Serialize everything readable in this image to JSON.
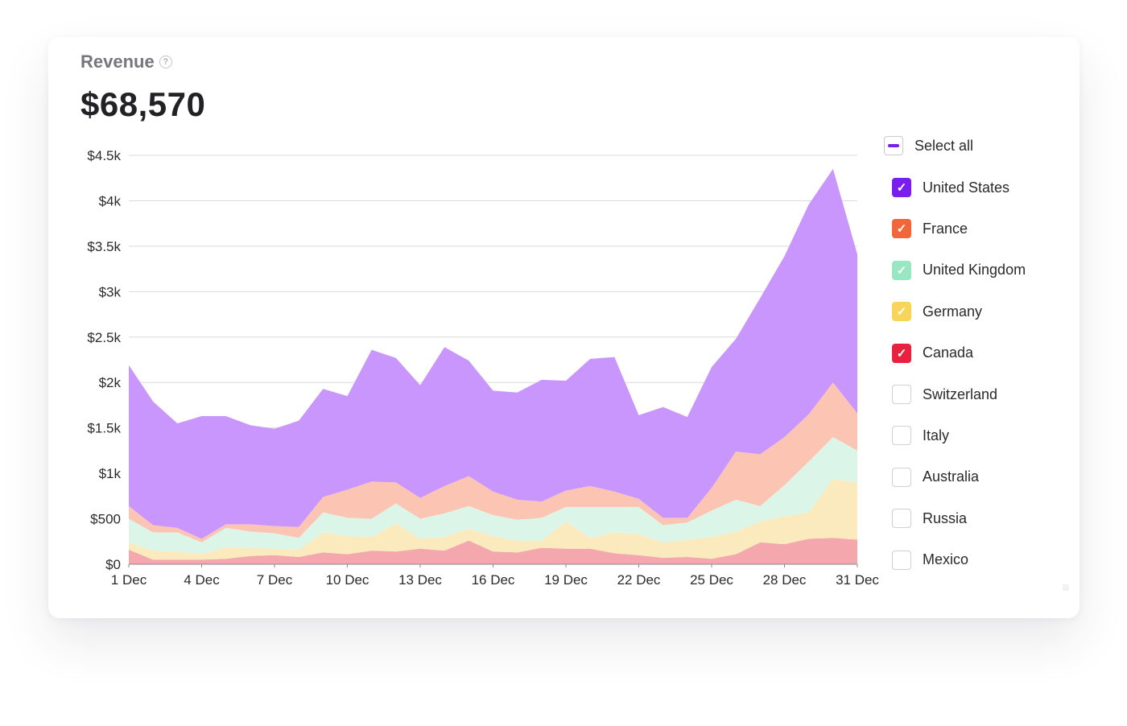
{
  "header": {
    "title": "Revenue",
    "total": "$68,570",
    "help_icon": "question-circle-icon"
  },
  "chart_data": {
    "type": "area",
    "stacked": true,
    "x": [
      "1 Dec",
      "2 Dec",
      "3 Dec",
      "4 Dec",
      "5 Dec",
      "6 Dec",
      "7 Dec",
      "8 Dec",
      "9 Dec",
      "10 Dec",
      "11 Dec",
      "12 Dec",
      "13 Dec",
      "14 Dec",
      "15 Dec",
      "16 Dec",
      "17 Dec",
      "18 Dec",
      "19 Dec",
      "20 Dec",
      "21 Dec",
      "22 Dec",
      "23 Dec",
      "24 Dec",
      "25 Dec",
      "26 Dec",
      "27 Dec",
      "28 Dec",
      "29 Dec",
      "30 Dec",
      "31 Dec"
    ],
    "x_tick_labels": [
      "1 Dec",
      "4 Dec",
      "7 Dec",
      "10 Dec",
      "13 Dec",
      "16 Dec",
      "19 Dec",
      "22 Dec",
      "25 Dec",
      "28 Dec",
      "31 Dec"
    ],
    "y_tick_labels": [
      "$0",
      "$500",
      "$1k",
      "$1.5k",
      "$2k",
      "$2.5k",
      "$3k",
      "$3.5k",
      "$4k",
      "$4.5k"
    ],
    "ylim": [
      0,
      4500
    ],
    "grid": true,
    "series": [
      {
        "name": "Canada",
        "color": "#f4a7ac",
        "values": [
          160,
          50,
          50,
          50,
          60,
          90,
          100,
          80,
          130,
          110,
          150,
          140,
          170,
          150,
          260,
          140,
          130,
          180,
          170,
          170,
          120,
          100,
          70,
          80,
          60,
          110,
          240,
          220,
          280,
          290,
          270
        ]
      },
      {
        "name": "Germany",
        "color": "#faeabd",
        "values": [
          80,
          100,
          90,
          60,
          130,
          90,
          70,
          80,
          220,
          200,
          150,
          310,
          110,
          150,
          130,
          170,
          130,
          80,
          300,
          120,
          230,
          230,
          170,
          190,
          240,
          250,
          230,
          310,
          290,
          650,
          630
        ]
      },
      {
        "name": "United Kingdom",
        "color": "#dcf5e9",
        "values": [
          260,
          200,
          210,
          130,
          210,
          180,
          170,
          130,
          220,
          200,
          200,
          220,
          220,
          260,
          250,
          230,
          230,
          250,
          160,
          340,
          280,
          300,
          190,
          190,
          290,
          350,
          170,
          340,
          560,
          460,
          350
        ]
      },
      {
        "name": "France",
        "color": "#fcc5b3",
        "values": [
          140,
          80,
          50,
          40,
          40,
          80,
          80,
          120,
          170,
          310,
          410,
          230,
          230,
          300,
          330,
          260,
          220,
          180,
          180,
          230,
          170,
          90,
          80,
          50,
          250,
          530,
          570,
          530,
          520,
          600,
          410
        ]
      },
      {
        "name": "United States",
        "color": "#c896fc",
        "values": [
          1550,
          1360,
          1150,
          1350,
          1190,
          1090,
          1070,
          1170,
          1190,
          1030,
          1450,
          1370,
          1240,
          1530,
          1270,
          1110,
          1180,
          1340,
          1210,
          1400,
          1480,
          920,
          1220,
          1110,
          1330,
          1240,
          1720,
          1990,
          2310,
          2350,
          1750
        ]
      }
    ]
  },
  "legend": {
    "select_all": {
      "label": "Select all",
      "state": "indeterminate",
      "accent": "#7a1ef0"
    },
    "items": [
      {
        "label": "United States",
        "checked": true,
        "color": "#7a1ef0"
      },
      {
        "label": "France",
        "checked": true,
        "color": "#f2663a"
      },
      {
        "label": "United Kingdom",
        "checked": true,
        "color": "#98e6c2"
      },
      {
        "label": "Germany",
        "checked": true,
        "color": "#f8d45a"
      },
      {
        "label": "Canada",
        "checked": true,
        "color": "#e8213e"
      },
      {
        "label": "Switzerland",
        "checked": false,
        "color": ""
      },
      {
        "label": "Italy",
        "checked": false,
        "color": ""
      },
      {
        "label": "Australia",
        "checked": false,
        "color": ""
      },
      {
        "label": "Russia",
        "checked": false,
        "color": ""
      },
      {
        "label": "Mexico",
        "checked": false,
        "color": ""
      }
    ]
  }
}
